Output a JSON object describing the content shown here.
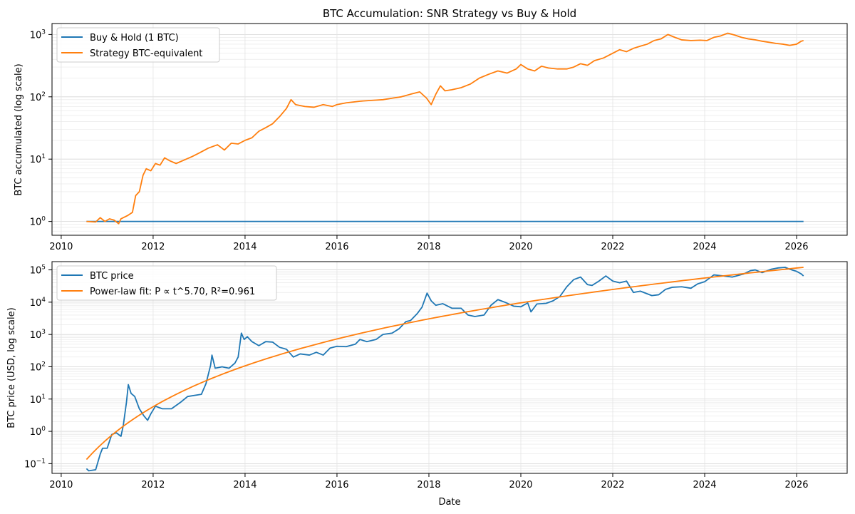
{
  "chart_data": [
    {
      "type": "line",
      "title": "BTC Accumulation: SNR Strategy vs Buy & Hold",
      "xlabel": "",
      "ylabel": "BTC accumulated (log scale)",
      "yscale": "log",
      "xlim": [
        2009.8,
        2027.1
      ],
      "ylim": [
        0.6,
        1500
      ],
      "x_ticks": [
        2010,
        2012,
        2014,
        2016,
        2018,
        2020,
        2022,
        2024,
        2026
      ],
      "y_ticks": [
        {
          "value": 1,
          "base": "10",
          "exp": "0"
        },
        {
          "value": 10,
          "base": "10",
          "exp": "1"
        },
        {
          "value": 100,
          "base": "10",
          "exp": "2"
        },
        {
          "value": 1000,
          "base": "10",
          "exp": "3"
        }
      ],
      "grid": true,
      "legend_position": "upper-left",
      "series": [
        {
          "name": "Buy & Hold (1 BTC)",
          "color": "#1f77b4",
          "points": [
            [
              2010.55,
              1.0
            ],
            [
              2026.15,
              1.0
            ]
          ]
        },
        {
          "name": "Strategy BTC-equivalent",
          "color": "#ff7f0e",
          "points": [
            [
              2010.55,
              1.0
            ],
            [
              2010.75,
              0.98
            ],
            [
              2010.85,
              1.15
            ],
            [
              2010.95,
              1.0
            ],
            [
              2011.05,
              1.1
            ],
            [
              2011.15,
              1.05
            ],
            [
              2011.25,
              0.92
            ],
            [
              2011.3,
              1.1
            ],
            [
              2011.45,
              1.25
            ],
            [
              2011.55,
              1.4
            ],
            [
              2011.62,
              2.6
            ],
            [
              2011.7,
              3.0
            ],
            [
              2011.78,
              5.5
            ],
            [
              2011.85,
              7.0
            ],
            [
              2011.95,
              6.5
            ],
            [
              2012.05,
              8.5
            ],
            [
              2012.15,
              8.0
            ],
            [
              2012.25,
              10.5
            ],
            [
              2012.35,
              9.5
            ],
            [
              2012.5,
              8.5
            ],
            [
              2012.65,
              9.5
            ],
            [
              2012.85,
              11.0
            ],
            [
              2013.0,
              12.5
            ],
            [
              2013.2,
              15.0
            ],
            [
              2013.4,
              17.0
            ],
            [
              2013.55,
              14.0
            ],
            [
              2013.7,
              18.0
            ],
            [
              2013.85,
              17.5
            ],
            [
              2014.0,
              20.0
            ],
            [
              2014.15,
              22.0
            ],
            [
              2014.3,
              28.0
            ],
            [
              2014.45,
              32.0
            ],
            [
              2014.6,
              37.0
            ],
            [
              2014.75,
              48.0
            ],
            [
              2014.9,
              65.0
            ],
            [
              2015.0,
              90.0
            ],
            [
              2015.1,
              75.0
            ],
            [
              2015.3,
              70.0
            ],
            [
              2015.5,
              68.0
            ],
            [
              2015.7,
              75.0
            ],
            [
              2015.9,
              70.0
            ],
            [
              2016.0,
              75.0
            ],
            [
              2016.2,
              80.0
            ],
            [
              2016.5,
              85.0
            ],
            [
              2016.8,
              88.0
            ],
            [
              2017.0,
              90.0
            ],
            [
              2017.2,
              95.0
            ],
            [
              2017.4,
              100.0
            ],
            [
              2017.6,
              110.0
            ],
            [
              2017.8,
              120.0
            ],
            [
              2017.95,
              95.0
            ],
            [
              2018.05,
              75.0
            ],
            [
              2018.15,
              110.0
            ],
            [
              2018.25,
              150.0
            ],
            [
              2018.35,
              125.0
            ],
            [
              2018.5,
              130.0
            ],
            [
              2018.7,
              140.0
            ],
            [
              2018.9,
              160.0
            ],
            [
              2019.1,
              200.0
            ],
            [
              2019.3,
              230.0
            ],
            [
              2019.5,
              260.0
            ],
            [
              2019.7,
              240.0
            ],
            [
              2019.9,
              280.0
            ],
            [
              2020.0,
              330.0
            ],
            [
              2020.15,
              280.0
            ],
            [
              2020.3,
              260.0
            ],
            [
              2020.45,
              310.0
            ],
            [
              2020.6,
              290.0
            ],
            [
              2020.8,
              280.0
            ],
            [
              2021.0,
              280.0
            ],
            [
              2021.15,
              300.0
            ],
            [
              2021.3,
              340.0
            ],
            [
              2021.45,
              320.0
            ],
            [
              2021.6,
              380.0
            ],
            [
              2021.8,
              420.0
            ],
            [
              2022.0,
              500.0
            ],
            [
              2022.15,
              570.0
            ],
            [
              2022.3,
              530.0
            ],
            [
              2022.45,
              600.0
            ],
            [
              2022.6,
              650.0
            ],
            [
              2022.75,
              700.0
            ],
            [
              2022.9,
              800.0
            ],
            [
              2023.05,
              850.0
            ],
            [
              2023.2,
              1000.0
            ],
            [
              2023.35,
              900.0
            ],
            [
              2023.5,
              820.0
            ],
            [
              2023.7,
              800.0
            ],
            [
              2023.9,
              810.0
            ],
            [
              2024.05,
              800.0
            ],
            [
              2024.2,
              900.0
            ],
            [
              2024.35,
              950.0
            ],
            [
              2024.5,
              1050.0
            ],
            [
              2024.65,
              980.0
            ],
            [
              2024.8,
              900.0
            ],
            [
              2024.95,
              850.0
            ],
            [
              2025.1,
              820.0
            ],
            [
              2025.25,
              780.0
            ],
            [
              2025.4,
              750.0
            ],
            [
              2025.55,
              720.0
            ],
            [
              2025.7,
              700.0
            ],
            [
              2025.85,
              670.0
            ],
            [
              2026.0,
              700.0
            ],
            [
              2026.1,
              780.0
            ],
            [
              2026.15,
              800.0
            ]
          ]
        }
      ]
    },
    {
      "type": "line",
      "title": "",
      "xlabel": "Date",
      "ylabel": "BTC price (USD, log scale)",
      "yscale": "log",
      "xlim": [
        2009.8,
        2027.1
      ],
      "ylim": [
        0.05,
        180000
      ],
      "x_ticks": [
        2010,
        2012,
        2014,
        2016,
        2018,
        2020,
        2022,
        2024,
        2026
      ],
      "y_ticks": [
        {
          "value": 0.1,
          "base": "10",
          "exp": "−1"
        },
        {
          "value": 1,
          "base": "10",
          "exp": "0"
        },
        {
          "value": 10,
          "base": "10",
          "exp": "1"
        },
        {
          "value": 100,
          "base": "10",
          "exp": "2"
        },
        {
          "value": 1000,
          "base": "10",
          "exp": "3"
        },
        {
          "value": 10000,
          "base": "10",
          "exp": "4"
        },
        {
          "value": 100000,
          "base": "10",
          "exp": "5"
        }
      ],
      "grid": true,
      "legend_position": "upper-left",
      "series": [
        {
          "name": "BTC price",
          "color": "#1f77b4",
          "points": [
            [
              2010.55,
              0.07
            ],
            [
              2010.6,
              0.06
            ],
            [
              2010.75,
              0.065
            ],
            [
              2010.85,
              0.2
            ],
            [
              2010.9,
              0.3
            ],
            [
              2011.0,
              0.3
            ],
            [
              2011.1,
              0.8
            ],
            [
              2011.2,
              0.9
            ],
            [
              2011.3,
              0.7
            ],
            [
              2011.35,
              1.5
            ],
            [
              2011.42,
              8.0
            ],
            [
              2011.46,
              28.0
            ],
            [
              2011.52,
              15.0
            ],
            [
              2011.6,
              12.0
            ],
            [
              2011.7,
              5.0
            ],
            [
              2011.8,
              3.0
            ],
            [
              2011.88,
              2.2
            ],
            [
              2011.95,
              3.5
            ],
            [
              2012.05,
              6.0
            ],
            [
              2012.2,
              5.0
            ],
            [
              2012.4,
              5.0
            ],
            [
              2012.6,
              8.0
            ],
            [
              2012.75,
              12.0
            ],
            [
              2012.9,
              13.0
            ],
            [
              2013.05,
              14.0
            ],
            [
              2013.15,
              30.0
            ],
            [
              2013.25,
              110.0
            ],
            [
              2013.28,
              230.0
            ],
            [
              2013.35,
              90.0
            ],
            [
              2013.5,
              100.0
            ],
            [
              2013.65,
              90.0
            ],
            [
              2013.78,
              130.0
            ],
            [
              2013.85,
              200.0
            ],
            [
              2013.92,
              1100.0
            ],
            [
              2013.98,
              700.0
            ],
            [
              2014.05,
              850.0
            ],
            [
              2014.15,
              600.0
            ],
            [
              2014.3,
              450.0
            ],
            [
              2014.45,
              600.0
            ],
            [
              2014.6,
              580.0
            ],
            [
              2014.75,
              400.0
            ],
            [
              2014.9,
              350.0
            ],
            [
              2015.05,
              200.0
            ],
            [
              2015.2,
              250.0
            ],
            [
              2015.4,
              230.0
            ],
            [
              2015.55,
              280.0
            ],
            [
              2015.7,
              230.0
            ],
            [
              2015.85,
              380.0
            ],
            [
              2016.0,
              430.0
            ],
            [
              2016.2,
              420.0
            ],
            [
              2016.4,
              500.0
            ],
            [
              2016.5,
              700.0
            ],
            [
              2016.65,
              600.0
            ],
            [
              2016.85,
              700.0
            ],
            [
              2017.0,
              1000.0
            ],
            [
              2017.2,
              1100.0
            ],
            [
              2017.35,
              1500.0
            ],
            [
              2017.5,
              2500.0
            ],
            [
              2017.6,
              2700.0
            ],
            [
              2017.75,
              4500.0
            ],
            [
              2017.85,
              7000.0
            ],
            [
              2017.96,
              19000.0
            ],
            [
              2018.05,
              11000.0
            ],
            [
              2018.15,
              8000.0
            ],
            [
              2018.3,
              9000.0
            ],
            [
              2018.5,
              6500.0
            ],
            [
              2018.7,
              6500.0
            ],
            [
              2018.85,
              4000.0
            ],
            [
              2019.0,
              3600.0
            ],
            [
              2019.2,
              4000.0
            ],
            [
              2019.35,
              8000.0
            ],
            [
              2019.5,
              12000.0
            ],
            [
              2019.65,
              10000.0
            ],
            [
              2019.85,
              7500.0
            ],
            [
              2020.0,
              7200.0
            ],
            [
              2020.15,
              9500.0
            ],
            [
              2020.22,
              5000.0
            ],
            [
              2020.35,
              8800.0
            ],
            [
              2020.55,
              9200.0
            ],
            [
              2020.7,
              11000.0
            ],
            [
              2020.85,
              15000.0
            ],
            [
              2021.0,
              30000.0
            ],
            [
              2021.15,
              50000.0
            ],
            [
              2021.3,
              60000.0
            ],
            [
              2021.45,
              35000.0
            ],
            [
              2021.55,
              33000.0
            ],
            [
              2021.7,
              45000.0
            ],
            [
              2021.85,
              65000.0
            ],
            [
              2022.0,
              45000.0
            ],
            [
              2022.15,
              40000.0
            ],
            [
              2022.3,
              45000.0
            ],
            [
              2022.45,
              20000.0
            ],
            [
              2022.6,
              22000.0
            ],
            [
              2022.85,
              16000.0
            ],
            [
              2023.0,
              17000.0
            ],
            [
              2023.15,
              25000.0
            ],
            [
              2023.3,
              29000.0
            ],
            [
              2023.5,
              30000.0
            ],
            [
              2023.7,
              27000.0
            ],
            [
              2023.85,
              37000.0
            ],
            [
              2024.0,
              43000.0
            ],
            [
              2024.2,
              70000.0
            ],
            [
              2024.4,
              65000.0
            ],
            [
              2024.6,
              60000.0
            ],
            [
              2024.85,
              75000.0
            ],
            [
              2025.0,
              95000.0
            ],
            [
              2025.1,
              100000.0
            ],
            [
              2025.25,
              82000.0
            ],
            [
              2025.45,
              105000.0
            ],
            [
              2025.6,
              115000.0
            ],
            [
              2025.75,
              120000.0
            ],
            [
              2025.85,
              105000.0
            ],
            [
              2026.0,
              90000.0
            ],
            [
              2026.1,
              75000.0
            ],
            [
              2026.15,
              65000.0
            ]
          ]
        },
        {
          "name": "Power-law fit: P ∝ t^5.70, R²=0.961",
          "color": "#ff7f0e",
          "genesis_year": 2009.0,
          "exponent": 5.7,
          "end_value": 120000,
          "x_start": 2010.55,
          "x_end": 2026.15
        }
      ]
    }
  ]
}
